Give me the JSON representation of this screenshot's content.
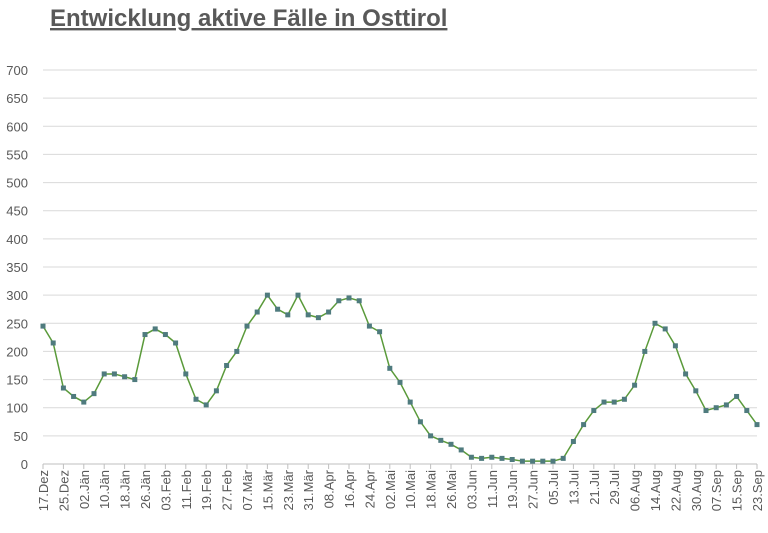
{
  "chart_data": {
    "type": "line",
    "title": "Entwicklung aktive Fälle in Osttirol",
    "categories": [
      "17.Dez",
      null,
      "25.Dez",
      null,
      "02.Jän",
      null,
      "10.Jän",
      null,
      "18.Jän",
      null,
      "26.Jän",
      null,
      "03.Feb",
      null,
      "11.Feb",
      null,
      "19.Feb",
      null,
      "27.Feb",
      null,
      "07.Mär",
      null,
      "15.Mär",
      null,
      "23.Mär",
      null,
      "31.Mär",
      null,
      "08.Apr",
      null,
      "16.Apr",
      null,
      "24.Apr",
      null,
      "02.Mai",
      null,
      "10.Mai",
      null,
      "18.Mai",
      null,
      "26.Mai",
      null,
      "03.Jun",
      null,
      "11.Jun",
      null,
      "19.Jun",
      null,
      "27.Jun",
      null,
      "05.Jul",
      null,
      "13.Jul",
      null,
      "21.Jul",
      null,
      "29.Jul",
      null,
      "06.Aug",
      null,
      "14.Aug",
      null,
      "22.Aug",
      null,
      "30.Aug",
      null,
      "07.Sep",
      null,
      "15.Sep",
      null,
      "23.Sep"
    ],
    "values": [
      245,
      215,
      135,
      120,
      110,
      125,
      160,
      160,
      155,
      150,
      230,
      240,
      230,
      215,
      160,
      115,
      105,
      130,
      175,
      200,
      245,
      270,
      300,
      275,
      265,
      300,
      265,
      260,
      270,
      290,
      295,
      290,
      245,
      235,
      170,
      145,
      110,
      75,
      50,
      42,
      35,
      25,
      12,
      10,
      12,
      10,
      8,
      5,
      5,
      5,
      5,
      10,
      40,
      70,
      95,
      110,
      110,
      115,
      140,
      200,
      250,
      240,
      210,
      160,
      130,
      95,
      100,
      105,
      120,
      95,
      70
    ],
    "color": "#4f7b7e",
    "line_color": "#5a9a3a",
    "ylim": [
      0,
      700
    ],
    "yticks": [
      0,
      50,
      100,
      150,
      200,
      250,
      300,
      350,
      400,
      450,
      500,
      550,
      600,
      650,
      700
    ],
    "grid": true
  }
}
